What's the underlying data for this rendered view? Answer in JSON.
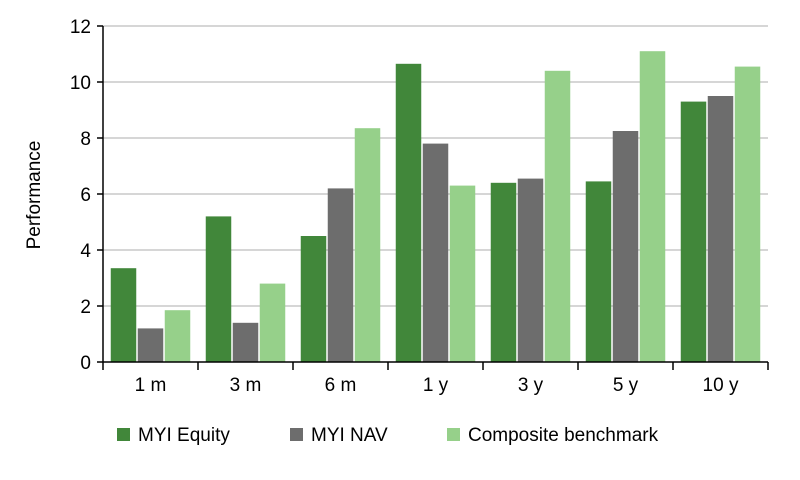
{
  "chart_data": {
    "type": "bar",
    "title": "",
    "xlabel": "",
    "ylabel": "Performance",
    "categories": [
      "1 m",
      "3 m",
      "6 m",
      "1 y",
      "3 y",
      "5 y",
      "10 y"
    ],
    "ylim": [
      0,
      12
    ],
    "yticks": [
      "0",
      "2",
      "4",
      "6",
      "8",
      "10",
      "12"
    ],
    "grid": true,
    "legend_position": "bottom",
    "series": [
      {
        "name": "MYI Equity",
        "color": "#41873a",
        "values": [
          3.35,
          5.2,
          4.5,
          10.65,
          6.4,
          6.45,
          9.3
        ]
      },
      {
        "name": "MYI NAV",
        "color": "#6d6d6d",
        "values": [
          1.2,
          1.4,
          6.2,
          7.8,
          6.55,
          8.25,
          9.5
        ]
      },
      {
        "name": "Composite benchmark",
        "color": "#96d08a",
        "values": [
          1.85,
          2.8,
          8.35,
          6.3,
          10.4,
          11.1,
          10.55
        ]
      }
    ]
  }
}
